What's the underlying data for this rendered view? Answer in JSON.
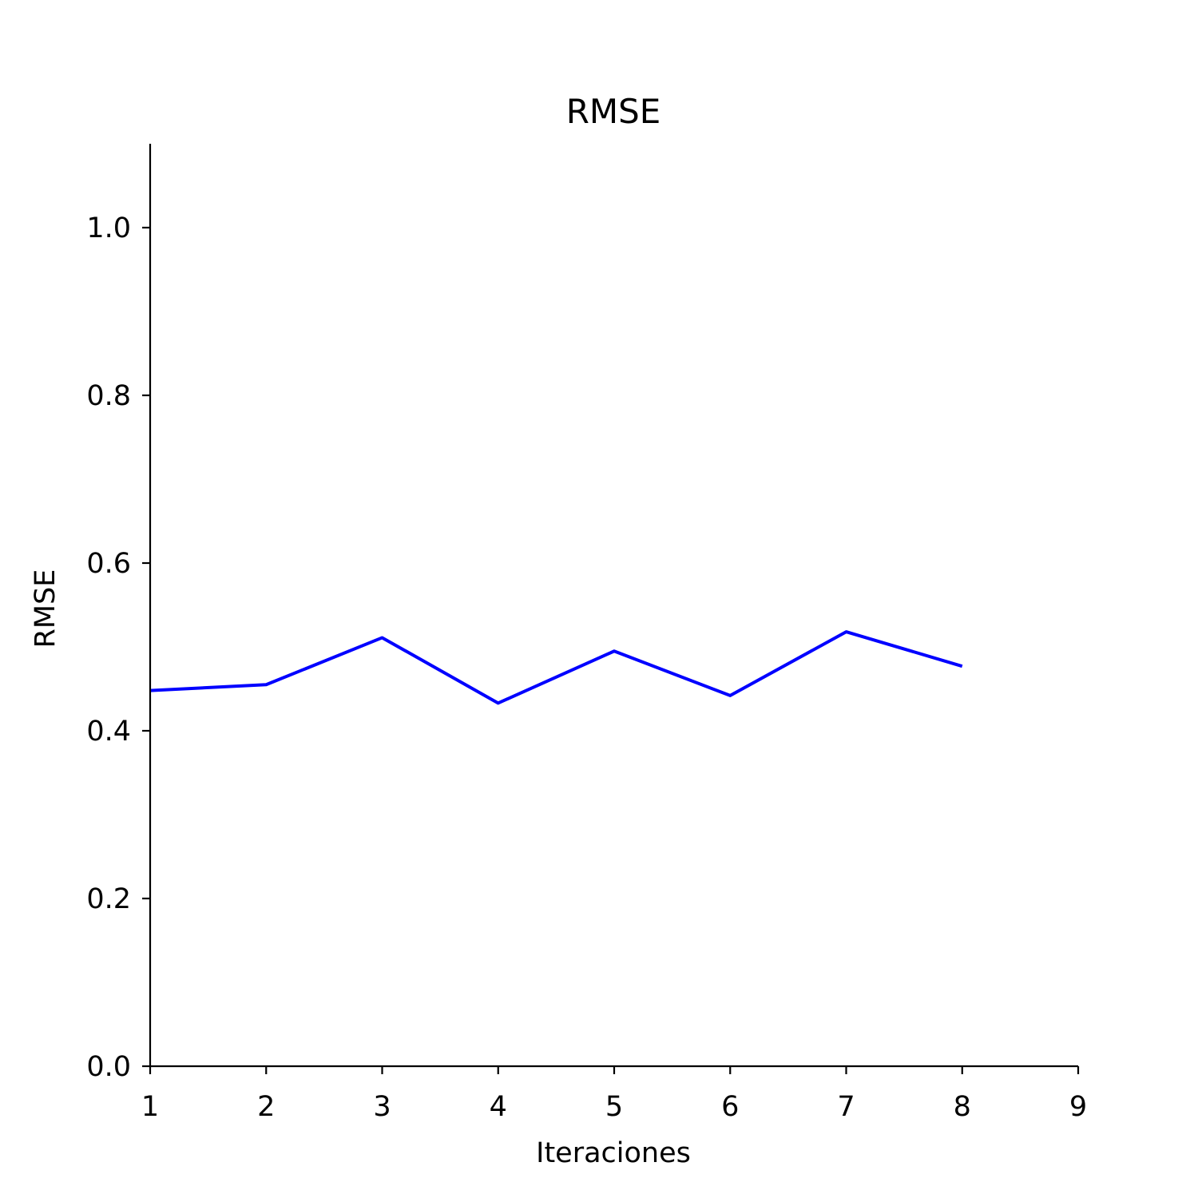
{
  "chart_data": {
    "type": "line",
    "title": "RMSE",
    "xlabel": "Iteraciones",
    "ylabel": "RMSE",
    "x": [
      1,
      2,
      3,
      4,
      5,
      6,
      7,
      8
    ],
    "series": [
      {
        "values": [
          0.448,
          0.455,
          0.511,
          0.433,
          0.495,
          0.442,
          0.518,
          0.477
        ],
        "color": "#0000ff"
      }
    ],
    "xlim": [
      1,
      9
    ],
    "ylim": [
      0,
      1.1
    ],
    "xticks": [
      1,
      2,
      3,
      4,
      5,
      6,
      7,
      8,
      9
    ],
    "xtick_labels": [
      "1",
      "2",
      "3",
      "4",
      "5",
      "6",
      "7",
      "8",
      "9"
    ],
    "yticks": [
      0,
      0.2,
      0.4,
      0.6,
      0.8,
      1.0
    ],
    "ytick_labels": [
      "0.0",
      "0.2",
      "0.4",
      "0.6",
      "0.8",
      "1.0"
    ],
    "grid": false,
    "spines": [
      "left",
      "bottom"
    ]
  }
}
